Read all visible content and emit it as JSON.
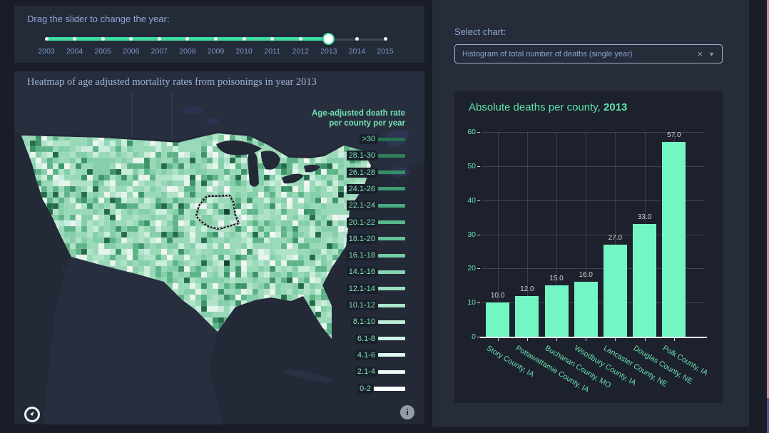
{
  "app": {
    "background": "#181d27",
    "accent_green": "#3fdca2",
    "bar_green": "#74f6c4",
    "panel_blue": "#242b39",
    "scroll_pink": "#cf8fa0",
    "scroll_indigo": "#555a8c"
  },
  "slider_panel": {
    "label": "Drag the slider to change the year:",
    "years": [
      "2003",
      "2004",
      "2005",
      "2006",
      "2007",
      "2008",
      "2009",
      "2010",
      "2011",
      "2012",
      "2013",
      "2014",
      "2015"
    ],
    "selected_year": "2013"
  },
  "map_panel": {
    "title": "Heatmap of age adjusted mortality rates from poisonings in year 2013",
    "legend_title_line1": "Age-adjusted death rate",
    "legend_title_line2": "per county per year",
    "legend": [
      {
        "label": ">30",
        "color": "#25704e"
      },
      {
        "label": "28.1-30",
        "color": "#2d7f5a"
      },
      {
        "label": "26.1-28",
        "color": "#368e66"
      },
      {
        "label": "24.1-26",
        "color": "#3f9d72"
      },
      {
        "label": "22.1-24",
        "color": "#4aab7e"
      },
      {
        "label": "20.1-22",
        "color": "#57b88b"
      },
      {
        "label": "18.1-20",
        "color": "#66c399"
      },
      {
        "label": "16.1-18",
        "color": "#76cda6"
      },
      {
        "label": "14.1-16",
        "color": "#87d6b3"
      },
      {
        "label": "12.1-14",
        "color": "#98dfc0"
      },
      {
        "label": "10.1-12",
        "color": "#aae7cd"
      },
      {
        "label": "8.1-10",
        "color": "#bceeda"
      },
      {
        "label": "6.1-8",
        "color": "#cdf4e5"
      },
      {
        "label": "4.1-6",
        "color": "#ddf8ee"
      },
      {
        "label": "2.1-4",
        "color": "#ecfbf5"
      },
      {
        "label": "0-2",
        "color": "#ffffff"
      }
    ],
    "info_glyph": "i",
    "county_palette": [
      "#98d9b8",
      "#83cfa9",
      "#aee3c8",
      "#c9eedd",
      "#e6f5ee",
      "#5cb487",
      "#3c9468",
      "#246b49",
      "#f2f7f4",
      "#14442e"
    ],
    "water_color": "#232937",
    "neighbor_land_color": "#272e3e"
  },
  "select_panel": {
    "label": "Select chart:",
    "selected_option": "Histogram of total number of deaths (single year)",
    "clear_glyph": "×",
    "caret_glyph": "▼"
  },
  "chart_data": {
    "type": "bar",
    "title": "Absolute deaths per county,",
    "title_year": "2013",
    "categories": [
      "Story County,  IA",
      "Pottawattamie County,  IA",
      "Buchanan County,  MO",
      "Woodbury County,  IA",
      "Lancaster County,  NE",
      "Douglas County,  NE",
      "Polk County,  IA"
    ],
    "values": [
      10.0,
      12.0,
      15.0,
      16.0,
      27.0,
      33.0,
      57.0
    ],
    "value_labels": [
      "10.0",
      "12.0",
      "15.0",
      "16.0",
      "27.0",
      "33.0",
      "57.0"
    ],
    "xlabel": "",
    "ylabel": "",
    "yticks": [
      0,
      10,
      20,
      30,
      40,
      50,
      60
    ],
    "ylim": [
      0,
      60
    ],
    "grid": true,
    "legend_position": "none",
    "bar_color": "#74f6c4"
  }
}
